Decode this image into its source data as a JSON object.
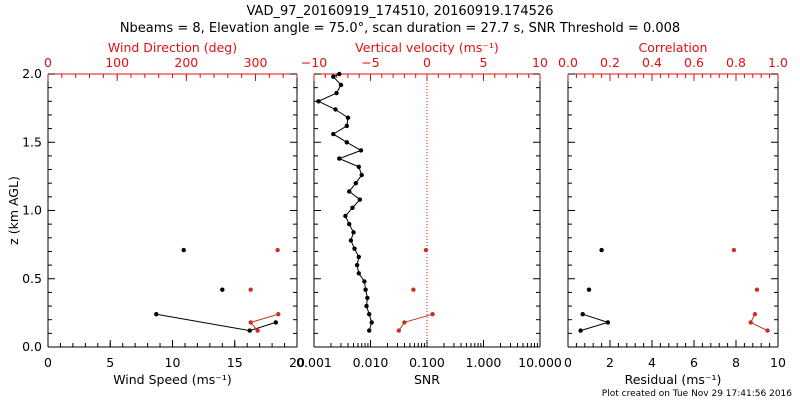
{
  "title_line1": "VAD_97_20160919_174510, 20160919.174526",
  "title_line2": "Nbeams = 8, Elevation angle = 75.0°, scan duration = 27.7 s, SNR Threshold = 0.008",
  "footer": "Plot created on Tue Nov 29 17:41:56 2016",
  "colors": {
    "black_series": "#000000",
    "red_series": "#c83222",
    "red_axis": "#e01010",
    "dotted_line": "#e01010"
  },
  "chart_data": [
    {
      "type": "line",
      "panel": "left",
      "ylabel": "z (km AGL)",
      "ylim": [
        0,
        2
      ],
      "yticks": [
        "0.0",
        "0.5",
        "1.0",
        "1.5",
        "2.0"
      ],
      "bottom_axis": {
        "label": "Wind Speed (ms⁻¹)",
        "lim": [
          0,
          20
        ],
        "ticks": [
          "0",
          "5",
          "10",
          "15",
          "20"
        ]
      },
      "top_axis": {
        "label": "Wind Direction (deg)",
        "lim": [
          0,
          360
        ],
        "ticks": [
          "0",
          "100",
          "200",
          "300"
        ]
      },
      "series": [
        {
          "axis": "bottom",
          "color": "black",
          "connected": true,
          "points": [
            [
              18.3,
              0.18
            ],
            [
              16.2,
              0.12
            ],
            [
              8.7,
              0.24
            ]
          ]
        },
        {
          "axis": "bottom",
          "color": "black",
          "connected": false,
          "points": [
            [
              14.0,
              0.42
            ],
            [
              10.9,
              0.71
            ]
          ]
        },
        {
          "axis": "top",
          "color": "red",
          "connected": true,
          "points": [
            [
              333,
              0.24
            ],
            [
              293,
              0.18
            ],
            [
              303,
              0.12
            ]
          ]
        },
        {
          "axis": "top",
          "color": "red",
          "connected": false,
          "points": [
            [
              293,
              0.42
            ],
            [
              332,
              0.71
            ]
          ]
        }
      ]
    },
    {
      "type": "line",
      "panel": "middle",
      "bottom_axis": {
        "label": "SNR",
        "scale": "log",
        "lim": [
          0.001,
          10
        ],
        "ticks": [
          "0.001",
          "0.010",
          "0.100",
          "1.000",
          "10.000"
        ]
      },
      "top_axis": {
        "label": "Vertical velocity (ms⁻¹)",
        "lim": [
          -10,
          10
        ],
        "ticks": [
          "−10",
          "−5",
          "0",
          "5",
          "10"
        ]
      },
      "reference_line": {
        "axis": "top",
        "value": 0,
        "style": "dotted"
      },
      "series": [
        {
          "axis": "bottom",
          "color": "black",
          "connected": true,
          "points": [
            [
              0.0095,
              0.12
            ],
            [
              0.0105,
              0.18
            ],
            [
              0.0095,
              0.24
            ],
            [
              0.0085,
              0.3
            ],
            [
              0.0088,
              0.36
            ],
            [
              0.0082,
              0.42
            ],
            [
              0.0078,
              0.48
            ],
            [
              0.0062,
              0.54
            ],
            [
              0.0058,
              0.6
            ],
            [
              0.0062,
              0.66
            ],
            [
              0.0052,
              0.72
            ],
            [
              0.0045,
              0.78
            ],
            [
              0.005,
              0.84
            ],
            [
              0.0042,
              0.9
            ],
            [
              0.0036,
              0.96
            ],
            [
              0.0048,
              1.02
            ],
            [
              0.0065,
              1.08
            ],
            [
              0.0042,
              1.14
            ],
            [
              0.0055,
              1.2
            ],
            [
              0.007,
              1.26
            ],
            [
              0.0062,
              1.32
            ],
            [
              0.0028,
              1.38
            ],
            [
              0.0068,
              1.44
            ],
            [
              0.0038,
              1.5
            ],
            [
              0.0022,
              1.56
            ],
            [
              0.0038,
              1.62
            ],
            [
              0.004,
              1.68
            ],
            [
              0.0024,
              1.74
            ],
            [
              0.0012,
              1.8
            ],
            [
              0.0025,
              1.86
            ],
            [
              0.003,
              1.92
            ],
            [
              0.0022,
              1.98
            ],
            [
              0.0028,
              2.0
            ]
          ]
        },
        {
          "axis": "top",
          "color": "red",
          "connected": true,
          "points": [
            [
              0.5,
              0.24
            ],
            [
              -2.0,
              0.18
            ],
            [
              -2.5,
              0.12
            ]
          ]
        },
        {
          "axis": "top",
          "color": "red",
          "connected": false,
          "points": [
            [
              -1.2,
              0.42
            ],
            [
              -0.1,
              0.71
            ]
          ]
        }
      ]
    },
    {
      "type": "line",
      "panel": "right",
      "bottom_axis": {
        "label": "Residual (ms⁻¹)",
        "lim": [
          0,
          10
        ],
        "ticks": [
          "0",
          "2",
          "4",
          "6",
          "8",
          "10"
        ]
      },
      "top_axis": {
        "label": "Correlation",
        "lim": [
          0,
          1
        ],
        "ticks": [
          "0.0",
          "0.2",
          "0.4",
          "0.6",
          "0.8",
          "1.0"
        ]
      },
      "series": [
        {
          "axis": "bottom",
          "color": "black",
          "connected": true,
          "points": [
            [
              0.6,
              0.12
            ],
            [
              1.9,
              0.18
            ],
            [
              0.7,
              0.24
            ]
          ]
        },
        {
          "axis": "bottom",
          "color": "black",
          "connected": false,
          "points": [
            [
              1.0,
              0.42
            ],
            [
              1.6,
              0.71
            ]
          ]
        },
        {
          "axis": "top",
          "color": "red",
          "connected": true,
          "points": [
            [
              0.95,
              0.12
            ],
            [
              0.87,
              0.18
            ],
            [
              0.89,
              0.24
            ]
          ]
        },
        {
          "axis": "top",
          "color": "red",
          "connected": false,
          "points": [
            [
              0.9,
              0.42
            ],
            [
              0.79,
              0.71
            ]
          ]
        }
      ]
    }
  ]
}
